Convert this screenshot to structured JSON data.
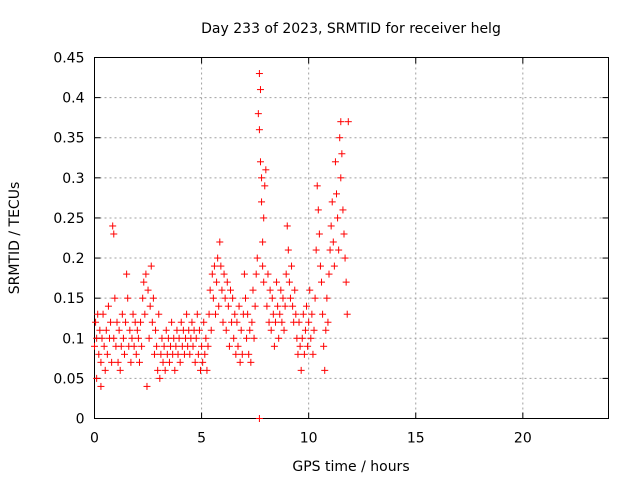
{
  "chart_data": {
    "type": "scatter",
    "title": "Day 233 of 2023, SRMTID for receiver helg",
    "xlabel": "GPS time / hours",
    "ylabel": "SRMTID / TECUs",
    "xlim": [
      0,
      24
    ],
    "ylim": [
      0,
      0.45
    ],
    "xticks": [
      0,
      5,
      10,
      15,
      20
    ],
    "xtick_labels": [
      "0",
      "5",
      "10",
      "15",
      "20"
    ],
    "yticks": [
      0,
      0.05,
      0.1,
      0.15,
      0.2,
      0.25,
      0.3,
      0.35,
      0.4,
      0.45
    ],
    "ytick_labels": [
      "0",
      "0.05",
      "0.1",
      "0.15",
      "0.2",
      "0.25",
      "0.3",
      "0.35",
      "0.4",
      "0.45"
    ],
    "grid": true,
    "marker": "+",
    "color": "#ff0000",
    "series": [
      {
        "name": "SRMTID",
        "points": [
          [
            0.0,
            0.09
          ],
          [
            0.05,
            0.12
          ],
          [
            0.1,
            0.05
          ],
          [
            0.1,
            0.1
          ],
          [
            0.15,
            0.13
          ],
          [
            0.2,
            0.08
          ],
          [
            0.25,
            0.11
          ],
          [
            0.3,
            0.04
          ],
          [
            0.3,
            0.07
          ],
          [
            0.35,
            0.1
          ],
          [
            0.4,
            0.13
          ],
          [
            0.45,
            0.09
          ],
          [
            0.5,
            0.06
          ],
          [
            0.55,
            0.11
          ],
          [
            0.6,
            0.08
          ],
          [
            0.65,
            0.14
          ],
          [
            0.7,
            0.1
          ],
          [
            0.75,
            0.12
          ],
          [
            0.8,
            0.07
          ],
          [
            0.85,
            0.24
          ],
          [
            0.9,
            0.23
          ],
          [
            0.9,
            0.1
          ],
          [
            0.95,
            0.15
          ],
          [
            1.0,
            0.09
          ],
          [
            1.05,
            0.12
          ],
          [
            1.1,
            0.07
          ],
          [
            1.15,
            0.11
          ],
          [
            1.2,
            0.06
          ],
          [
            1.25,
            0.09
          ],
          [
            1.3,
            0.13
          ],
          [
            1.35,
            0.1
          ],
          [
            1.4,
            0.08
          ],
          [
            1.45,
            0.12
          ],
          [
            1.5,
            0.18
          ],
          [
            1.55,
            0.15
          ],
          [
            1.6,
            0.09
          ],
          [
            1.65,
            0.11
          ],
          [
            1.7,
            0.07
          ],
          [
            1.75,
            0.1
          ],
          [
            1.8,
            0.13
          ],
          [
            1.85,
            0.09
          ],
          [
            1.9,
            0.12
          ],
          [
            1.95,
            0.08
          ],
          [
            2.0,
            0.11
          ],
          [
            2.05,
            0.1
          ],
          [
            2.1,
            0.07
          ],
          [
            2.15,
            0.12
          ],
          [
            2.2,
            0.09
          ],
          [
            2.25,
            0.15
          ],
          [
            2.3,
            0.17
          ],
          [
            2.35,
            0.13
          ],
          [
            2.4,
            0.18
          ],
          [
            2.45,
            0.04
          ],
          [
            2.5,
            0.16
          ],
          [
            2.55,
            0.1
          ],
          [
            2.6,
            0.14
          ],
          [
            2.65,
            0.19
          ],
          [
            2.7,
            0.12
          ],
          [
            2.75,
            0.15
          ],
          [
            2.8,
            0.08
          ],
          [
            2.85,
            0.11
          ],
          [
            2.9,
            0.09
          ],
          [
            2.95,
            0.06
          ],
          [
            3.0,
            0.13
          ],
          [
            3.05,
            0.05
          ],
          [
            3.1,
            0.08
          ],
          [
            3.15,
            0.1
          ],
          [
            3.2,
            0.07
          ],
          [
            3.25,
            0.09
          ],
          [
            3.3,
            0.06
          ],
          [
            3.35,
            0.11
          ],
          [
            3.4,
            0.08
          ],
          [
            3.45,
            0.1
          ],
          [
            3.5,
            0.07
          ],
          [
            3.55,
            0.09
          ],
          [
            3.6,
            0.12
          ],
          [
            3.65,
            0.08
          ],
          [
            3.7,
            0.1
          ],
          [
            3.75,
            0.06
          ],
          [
            3.8,
            0.09
          ],
          [
            3.85,
            0.11
          ],
          [
            3.9,
            0.08
          ],
          [
            3.95,
            0.1
          ],
          [
            4.0,
            0.07
          ],
          [
            4.05,
            0.12
          ],
          [
            4.1,
            0.09
          ],
          [
            4.15,
            0.11
          ],
          [
            4.2,
            0.08
          ],
          [
            4.25,
            0.1
          ],
          [
            4.3,
            0.13
          ],
          [
            4.35,
            0.09
          ],
          [
            4.4,
            0.11
          ],
          [
            4.45,
            0.08
          ],
          [
            4.5,
            0.1
          ],
          [
            4.55,
            0.12
          ],
          [
            4.6,
            0.09
          ],
          [
            4.65,
            0.11
          ],
          [
            4.7,
            0.07
          ],
          [
            4.75,
            0.1
          ],
          [
            4.8,
            0.13
          ],
          [
            4.85,
            0.08
          ],
          [
            4.9,
            0.11
          ],
          [
            4.95,
            0.06
          ],
          [
            5.0,
            0.09
          ],
          [
            5.05,
            0.07
          ],
          [
            5.1,
            0.12
          ],
          [
            5.15,
            0.08
          ],
          [
            5.2,
            0.1
          ],
          [
            5.25,
            0.06
          ],
          [
            5.3,
            0.09
          ],
          [
            5.35,
            0.13
          ],
          [
            5.4,
            0.16
          ],
          [
            5.45,
            0.11
          ],
          [
            5.5,
            0.18
          ],
          [
            5.55,
            0.15
          ],
          [
            5.6,
            0.19
          ],
          [
            5.65,
            0.13
          ],
          [
            5.7,
            0.17
          ],
          [
            5.75,
            0.2
          ],
          [
            5.8,
            0.14
          ],
          [
            5.85,
            0.22
          ],
          [
            5.9,
            0.19
          ],
          [
            5.95,
            0.16
          ],
          [
            6.0,
            0.12
          ],
          [
            6.05,
            0.18
          ],
          [
            6.1,
            0.15
          ],
          [
            6.15,
            0.11
          ],
          [
            6.2,
            0.17
          ],
          [
            6.25,
            0.14
          ],
          [
            6.3,
            0.09
          ],
          [
            6.35,
            0.16
          ],
          [
            6.4,
            0.12
          ],
          [
            6.45,
            0.15
          ],
          [
            6.5,
            0.1
          ],
          [
            6.55,
            0.13
          ],
          [
            6.6,
            0.08
          ],
          [
            6.65,
            0.12
          ],
          [
            6.7,
            0.09
          ],
          [
            6.75,
            0.14
          ],
          [
            6.8,
            0.07
          ],
          [
            6.85,
            0.11
          ],
          [
            6.9,
            0.08
          ],
          [
            6.95,
            0.13
          ],
          [
            7.0,
            0.18
          ],
          [
            7.05,
            0.15
          ],
          [
            7.1,
            0.1
          ],
          [
            7.15,
            0.13
          ],
          [
            7.2,
            0.08
          ],
          [
            7.25,
            0.11
          ],
          [
            7.3,
            0.07
          ],
          [
            7.35,
            0.12
          ],
          [
            7.4,
            0.16
          ],
          [
            7.45,
            0.1
          ],
          [
            7.5,
            0.14
          ],
          [
            7.55,
            0.18
          ],
          [
            7.6,
            0.2
          ],
          [
            7.65,
            0.38
          ],
          [
            7.7,
            0.36
          ],
          [
            7.7,
            0.43
          ],
          [
            7.75,
            0.41
          ],
          [
            7.75,
            0.32
          ],
          [
            7.8,
            0.3
          ],
          [
            7.8,
            0.27
          ],
          [
            7.85,
            0.22
          ],
          [
            7.85,
            0.19
          ],
          [
            7.9,
            0.25
          ],
          [
            7.9,
            0.17
          ],
          [
            7.95,
            0.29
          ],
          [
            8.0,
            0.31
          ],
          [
            8.05,
            0.14
          ],
          [
            8.1,
            0.18
          ],
          [
            8.15,
            0.12
          ],
          [
            8.2,
            0.16
          ],
          [
            8.25,
            0.11
          ],
          [
            8.3,
            0.15
          ],
          [
            8.35,
            0.13
          ],
          [
            8.4,
            0.09
          ],
          [
            8.45,
            0.12
          ],
          [
            8.5,
            0.17
          ],
          [
            8.55,
            0.14
          ],
          [
            8.6,
            0.1
          ],
          [
            8.65,
            0.13
          ],
          [
            8.7,
            0.16
          ],
          [
            8.75,
            0.12
          ],
          [
            8.8,
            0.15
          ],
          [
            8.85,
            0.11
          ],
          [
            8.9,
            0.14
          ],
          [
            8.95,
            0.18
          ],
          [
            9.0,
            0.24
          ],
          [
            9.05,
            0.21
          ],
          [
            9.1,
            0.17
          ],
          [
            9.15,
            0.15
          ],
          [
            9.2,
            0.19
          ],
          [
            9.25,
            0.14
          ],
          [
            9.3,
            0.12
          ],
          [
            9.35,
            0.16
          ],
          [
            9.4,
            0.13
          ],
          [
            9.45,
            0.1
          ],
          [
            9.5,
            0.08
          ],
          [
            9.55,
            0.12
          ],
          [
            9.6,
            0.09
          ],
          [
            9.65,
            0.06
          ],
          [
            9.7,
            0.1
          ],
          [
            9.75,
            0.13
          ],
          [
            9.8,
            0.08
          ],
          [
            9.85,
            0.11
          ],
          [
            9.9,
            0.14
          ],
          [
            9.95,
            0.09
          ],
          [
            10.0,
            0.12
          ],
          [
            10.05,
            0.16
          ],
          [
            10.1,
            0.1
          ],
          [
            10.15,
            0.13
          ],
          [
            10.2,
            0.08
          ],
          [
            10.25,
            0.11
          ],
          [
            10.3,
            0.15
          ],
          [
            10.35,
            0.21
          ],
          [
            10.4,
            0.29
          ],
          [
            10.45,
            0.26
          ],
          [
            10.5,
            0.23
          ],
          [
            10.55,
            0.19
          ],
          [
            10.6,
            0.17
          ],
          [
            10.65,
            0.13
          ],
          [
            10.7,
            0.09
          ],
          [
            10.75,
            0.06
          ],
          [
            10.8,
            0.11
          ],
          [
            10.85,
            0.15
          ],
          [
            10.9,
            0.12
          ],
          [
            10.95,
            0.18
          ],
          [
            11.0,
            0.21
          ],
          [
            11.05,
            0.24
          ],
          [
            11.1,
            0.27
          ],
          [
            11.15,
            0.22
          ],
          [
            11.2,
            0.19
          ],
          [
            11.25,
            0.32
          ],
          [
            11.3,
            0.28
          ],
          [
            11.35,
            0.25
          ],
          [
            11.4,
            0.21
          ],
          [
            11.45,
            0.35
          ],
          [
            11.5,
            0.37
          ],
          [
            11.5,
            0.3
          ],
          [
            11.55,
            0.33
          ],
          [
            11.6,
            0.26
          ],
          [
            11.65,
            0.23
          ],
          [
            11.7,
            0.2
          ],
          [
            11.75,
            0.17
          ],
          [
            11.8,
            0.13
          ],
          [
            11.85,
            0.37
          ],
          [
            7.7,
            0.0
          ]
        ]
      }
    ]
  }
}
